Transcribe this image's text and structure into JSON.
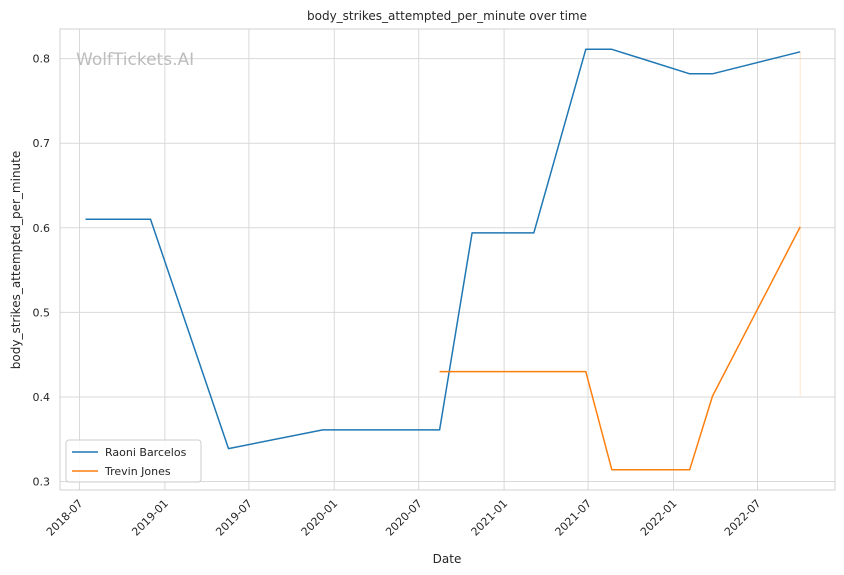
{
  "chart_data": {
    "type": "line",
    "title": "body_strikes_attempted_per_minute over time",
    "xlabel": "Date",
    "ylabel": "body_strikes_attempted_per_minute",
    "watermark": "WolfTickets.AI",
    "xlim": [
      "2018-05-20",
      "2022-12-15"
    ],
    "ylim": [
      0.29,
      0.835
    ],
    "x_ticks": [
      "2018-07",
      "2019-01",
      "2019-07",
      "2020-01",
      "2020-07",
      "2021-01",
      "2021-07",
      "2022-01",
      "2022-07"
    ],
    "y_ticks": [
      0.3,
      0.4,
      0.5,
      0.6,
      0.7,
      0.8
    ],
    "grid": true,
    "legend_position": "lower-left",
    "series": [
      {
        "name": "Raoni Barcelos",
        "color": "#1f77b4",
        "x": [
          "2018-07-14",
          "2018-12-01",
          "2019-05-18",
          "2019-12-07",
          "2020-08-15",
          "2020-10-24",
          "2021-03-06",
          "2021-06-26",
          "2021-08-21",
          "2022-02-05",
          "2022-03-26",
          "2022-10-01"
        ],
        "y": [
          0.61,
          0.61,
          0.339,
          0.361,
          0.361,
          0.594,
          0.594,
          0.811,
          0.811,
          0.782,
          0.782,
          0.808
        ]
      },
      {
        "name": "Trevin Jones",
        "color": "#ff7f0e",
        "x": [
          "2020-08-15",
          "2021-06-26",
          "2021-08-21",
          "2022-02-05",
          "2022-03-26",
          "2022-10-01"
        ],
        "y": [
          0.43,
          0.43,
          0.314,
          0.314,
          0.401,
          0.601
        ]
      }
    ]
  }
}
